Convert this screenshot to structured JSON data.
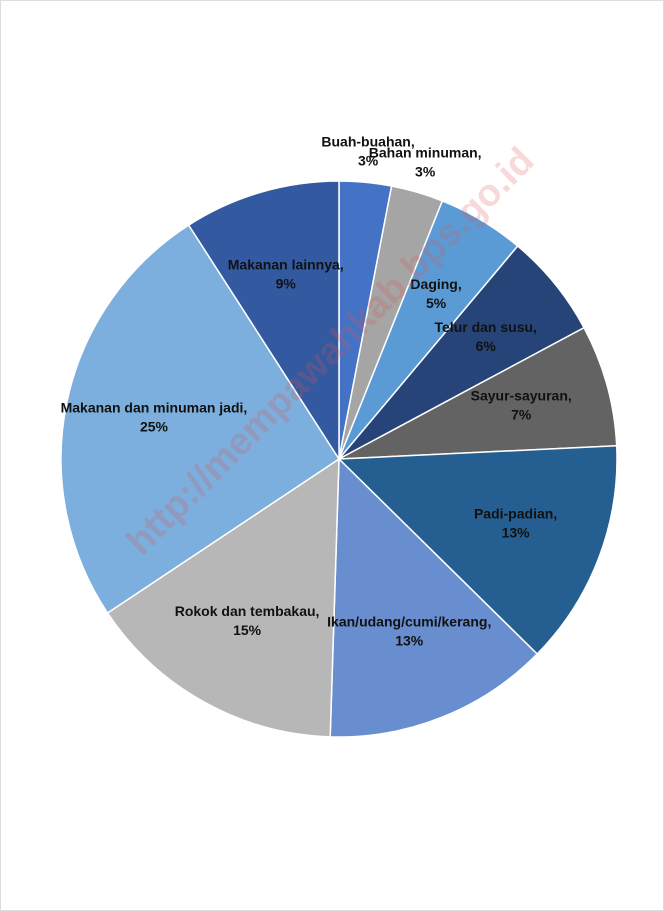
{
  "chart_data": {
    "type": "pie",
    "categories": [
      "Buah-buahan",
      "Bahan minuman",
      "Daging",
      "Telur dan susu",
      "Sayur-sayuran",
      "Padi-padian",
      "Ikan/udang/cumi/kerang",
      "Rokok dan tembakau",
      "Makanan dan minuman jadi",
      "Makanan lainnya"
    ],
    "values": [
      3,
      3,
      5,
      6,
      7,
      13,
      13,
      15,
      25,
      9
    ],
    "value_labels": [
      "3%",
      "3%",
      "5%",
      "6%",
      "7%",
      "13%",
      "13%",
      "15%",
      "25%",
      "9%"
    ],
    "label_separator": ",",
    "colors": [
      "#4472c4",
      "#a5a5a5",
      "#5b9bd5",
      "#264478",
      "#636363",
      "#255e91",
      "#698ed0",
      "#b7b7b7",
      "#7cafdd",
      "#335aa1"
    ],
    "watermark": "http://mempawahkab.bps.go.id"
  }
}
